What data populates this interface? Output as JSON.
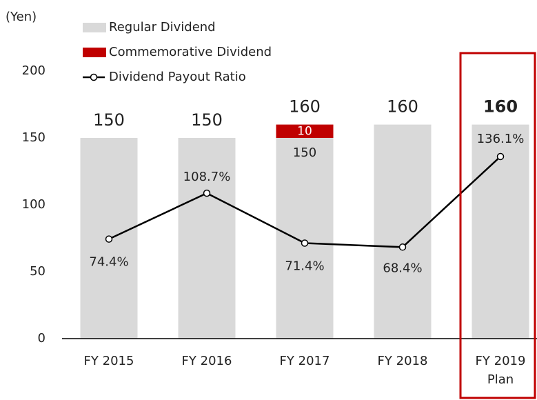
{
  "chart_data": {
    "type": "bar",
    "y_axis_label": "(Yen)",
    "categories": [
      "FY 2015",
      "FY 2016",
      "FY 2017",
      "FY 2018",
      "FY 2019\nPlan"
    ],
    "series": [
      {
        "name": "Regular Dividend",
        "color": "#d9d9d9",
        "values": [
          150,
          150,
          150,
          160,
          160
        ]
      },
      {
        "name": "Commemorative Dividend",
        "color": "#c00000",
        "values": [
          null,
          null,
          10,
          null,
          null
        ]
      },
      {
        "name": "Dividend Payout Ratio",
        "type": "line",
        "axis": "y2",
        "color": "#000000",
        "values": [
          74.4,
          108.7,
          71.4,
          68.4,
          136.1
        ],
        "value_labels": [
          "74.4%",
          "108.7%",
          "71.4%",
          "68.4%",
          "136.1%"
        ]
      }
    ],
    "total_labels": [
      150,
      150,
      160,
      160,
      160
    ],
    "inner_labels": [
      null,
      null,
      150,
      null,
      null
    ],
    "highlight_category": 4,
    "ylim": [
      0,
      200
    ],
    "yticks": [
      0,
      50,
      100,
      150,
      200
    ],
    "y2lim": [
      0,
      200
    ],
    "grid": false
  }
}
